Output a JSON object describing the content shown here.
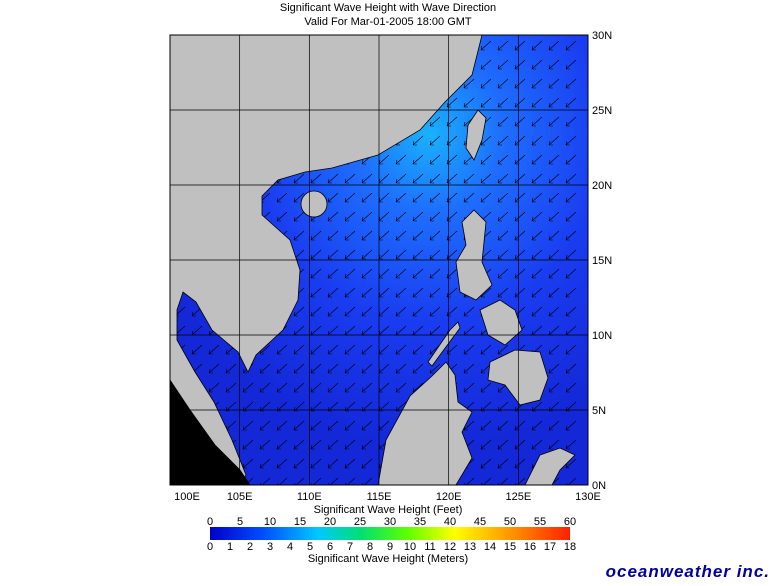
{
  "title": "Significant Wave Height with Wave Direction",
  "subtitle": "Valid For Mar-01-2005 18:00 GMT",
  "map": {
    "lonlim": [
      100,
      130
    ],
    "latlim": [
      0,
      30
    ],
    "lonticks": [
      {
        "value": 100,
        "label": "100E"
      },
      {
        "value": 105,
        "label": "105E"
      },
      {
        "value": 110,
        "label": "110E"
      },
      {
        "value": 115,
        "label": "115E"
      },
      {
        "value": 120,
        "label": "120E"
      },
      {
        "value": 125,
        "label": "125E"
      },
      {
        "value": 130,
        "label": "130E"
      }
    ],
    "latticks": [
      {
        "value": 0,
        "label": "0N"
      },
      {
        "value": 5,
        "label": "5N"
      },
      {
        "value": 10,
        "label": "10N"
      },
      {
        "value": 15,
        "label": "15N"
      },
      {
        "value": 20,
        "label": "20N"
      },
      {
        "value": 25,
        "label": "25N"
      },
      {
        "value": 30,
        "label": "30N"
      }
    ]
  },
  "colorbar": {
    "feet_label": "Significant Wave Height (Feet)",
    "meters_label": "Significant Wave Height (Meters)",
    "feet_lim": [
      0,
      60
    ],
    "feet_ticks": [
      0,
      5,
      10,
      15,
      20,
      25,
      30,
      35,
      40,
      45,
      50,
      55,
      60
    ],
    "meters_lim": [
      0,
      18
    ],
    "meters_ticks": [
      0,
      1,
      2,
      3,
      4,
      5,
      6,
      7,
      8,
      9,
      10,
      11,
      12,
      13,
      14,
      15,
      16,
      17,
      18
    ]
  },
  "logo": "oceanweather inc."
}
